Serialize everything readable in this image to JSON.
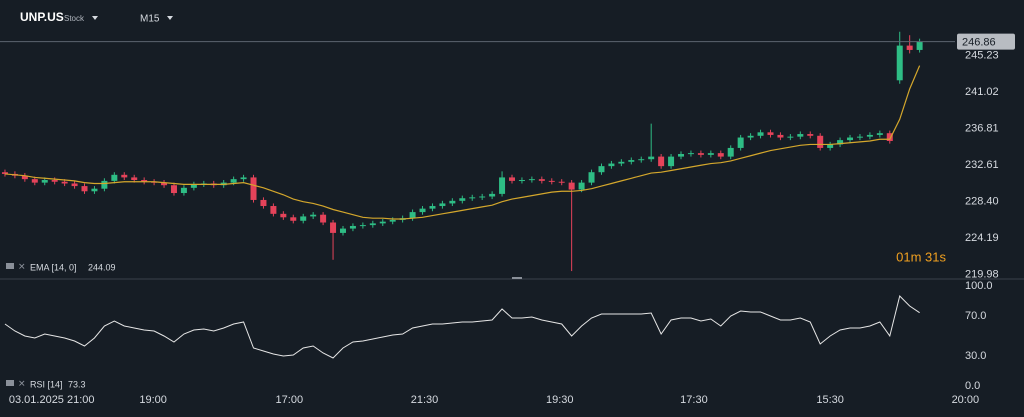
{
  "toolbar": {
    "symbol": "UNP.US",
    "kind": "Stock",
    "timeframe": "M15",
    "timer": "01m 31s"
  },
  "chart_data": [
    {
      "type": "candlestick",
      "up_color": "#2ebd85",
      "down_color": "#e5435a",
      "ylim": [
        219.6,
        248.2
      ],
      "yticks": [
        245.23,
        241.02,
        236.81,
        232.61,
        {
          "value": 228.4,
          "label": "228.40"
        },
        224.19,
        219.98
      ],
      "open": [
        231.8,
        231.6,
        231.4,
        231.0,
        230.6,
        230.9,
        230.7,
        230.5,
        230.2,
        229.6,
        229.9,
        230.8,
        231.5,
        231.2,
        230.9,
        230.7,
        230.6,
        230.3,
        229.4,
        230.0,
        230.4,
        230.5,
        230.3,
        230.6,
        231.0,
        231.2,
        228.6,
        227.9,
        227.0,
        226.6,
        226.2,
        226.7,
        226.9,
        226.0,
        224.8,
        225.3,
        225.6,
        225.7,
        225.9,
        226.1,
        226.3,
        226.5,
        227.2,
        227.6,
        227.9,
        228.2,
        228.5,
        228.8,
        228.9,
        229.0,
        229.3,
        231.2,
        230.8,
        230.9,
        231.0,
        230.8,
        230.7,
        230.6,
        229.8,
        230.6,
        231.8,
        232.5,
        232.8,
        233.0,
        233.2,
        233.3,
        233.6,
        232.5,
        233.6,
        233.9,
        234.0,
        233.8,
        234.0,
        233.6,
        234.6,
        235.8,
        236.0,
        236.4,
        236.1,
        235.8,
        235.9,
        236.2,
        236.0,
        234.6,
        235.0,
        235.5,
        235.8,
        235.9,
        236.1,
        236.3,
        242.4,
        246.4,
        245.9
      ],
      "high": [
        232.1,
        231.9,
        231.7,
        231.3,
        231.2,
        231.2,
        231.0,
        230.8,
        230.5,
        230.2,
        231.1,
        231.8,
        231.8,
        231.5,
        231.2,
        231.0,
        230.9,
        230.6,
        230.3,
        230.7,
        230.8,
        230.8,
        230.9,
        231.3,
        231.5,
        231.5,
        228.9,
        228.2,
        227.3,
        226.9,
        227.0,
        227.2,
        227.2,
        226.3,
        225.6,
        225.9,
        226.0,
        226.2,
        226.4,
        226.6,
        226.8,
        227.5,
        227.9,
        228.2,
        228.5,
        228.8,
        229.1,
        229.2,
        229.3,
        229.6,
        231.9,
        231.5,
        231.2,
        231.3,
        231.3,
        231.1,
        231.0,
        230.9,
        230.9,
        232.1,
        232.8,
        233.1,
        233.3,
        233.5,
        233.6,
        237.4,
        233.9,
        233.9,
        234.2,
        234.3,
        234.3,
        234.3,
        234.3,
        234.9,
        236.1,
        236.3,
        236.7,
        236.7,
        236.4,
        236.2,
        236.5,
        236.5,
        236.3,
        235.3,
        235.8,
        236.1,
        236.2,
        236.4,
        236.6,
        236.6,
        248.0,
        247.6,
        247.2
      ],
      "low": [
        231.3,
        231.1,
        230.7,
        230.3,
        230.3,
        230.4,
        230.2,
        229.9,
        229.3,
        229.3,
        229.6,
        230.5,
        230.9,
        230.6,
        230.4,
        230.3,
        230.0,
        229.1,
        229.1,
        229.7,
        230.1,
        230.0,
        230.0,
        230.3,
        230.7,
        228.3,
        227.6,
        226.7,
        226.3,
        225.9,
        225.9,
        226.4,
        225.7,
        221.7,
        224.5,
        225.0,
        225.3,
        225.4,
        225.6,
        225.8,
        226.0,
        226.2,
        226.9,
        227.3,
        227.6,
        227.9,
        228.2,
        228.5,
        228.6,
        228.7,
        229.0,
        230.5,
        230.5,
        230.6,
        230.5,
        230.4,
        230.3,
        220.4,
        229.5,
        230.3,
        231.5,
        232.2,
        232.5,
        232.7,
        232.9,
        233.0,
        232.2,
        232.2,
        233.3,
        233.6,
        233.5,
        233.5,
        233.3,
        233.3,
        234.3,
        235.5,
        235.7,
        235.8,
        235.5,
        235.5,
        235.6,
        235.7,
        234.3,
        234.3,
        234.7,
        235.2,
        235.5,
        235.6,
        235.8,
        235.1,
        242.0,
        245.5,
        245.6
      ],
      "close": [
        231.6,
        231.4,
        231.0,
        230.6,
        230.9,
        230.7,
        230.5,
        230.2,
        229.6,
        229.9,
        230.8,
        231.5,
        231.2,
        230.9,
        230.7,
        230.6,
        230.3,
        229.4,
        230.0,
        230.4,
        230.5,
        230.3,
        230.6,
        231.0,
        231.2,
        228.6,
        227.9,
        227.0,
        226.6,
        226.2,
        226.7,
        226.9,
        226.0,
        224.8,
        225.3,
        225.6,
        225.7,
        225.9,
        226.1,
        226.3,
        226.5,
        227.2,
        227.6,
        227.9,
        228.2,
        228.5,
        228.8,
        228.9,
        229.0,
        229.3,
        231.2,
        230.8,
        230.9,
        231.0,
        230.8,
        230.7,
        230.6,
        229.8,
        230.6,
        231.8,
        232.5,
        232.8,
        233.0,
        233.2,
        233.3,
        233.6,
        232.5,
        233.6,
        233.9,
        234.0,
        233.8,
        234.0,
        233.6,
        234.6,
        235.8,
        236.0,
        236.4,
        236.1,
        235.8,
        235.9,
        236.2,
        236.0,
        234.6,
        235.0,
        235.5,
        235.8,
        235.9,
        236.1,
        236.3,
        235.4,
        246.4,
        245.9,
        246.86
      ],
      "ema": {
        "name": "EMA [14, 0]",
        "color": "#d4a72c",
        "values": [
          231.6,
          231.5,
          231.4,
          231.2,
          231.1,
          231.0,
          230.9,
          230.8,
          230.6,
          230.5,
          230.5,
          230.6,
          230.7,
          230.7,
          230.7,
          230.7,
          230.6,
          230.5,
          230.4,
          230.4,
          230.4,
          230.4,
          230.4,
          230.5,
          230.6,
          230.3,
          230.0,
          229.6,
          229.2,
          228.7,
          228.4,
          228.2,
          227.9,
          227.5,
          227.2,
          226.9,
          226.6,
          226.5,
          226.5,
          226.4,
          226.4,
          226.5,
          226.6,
          226.8,
          227.0,
          227.2,
          227.4,
          227.6,
          227.8,
          228.0,
          228.4,
          228.7,
          228.9,
          229.1,
          229.3,
          229.5,
          229.6,
          229.6,
          229.7,
          229.9,
          230.2,
          230.5,
          230.8,
          231.1,
          231.4,
          231.7,
          231.8,
          232.0,
          232.2,
          232.4,
          232.6,
          232.8,
          232.9,
          233.1,
          233.4,
          233.7,
          234.0,
          234.3,
          234.5,
          234.7,
          234.9,
          235.0,
          235.0,
          235.0,
          235.1,
          235.2,
          235.3,
          235.4,
          235.6,
          235.6,
          237.9,
          241.4,
          244.09
        ]
      }
    },
    {
      "type": "line",
      "name": "RSI [14]",
      "color": "#e6e6e6",
      "ylim": [
        0,
        100
      ],
      "yticks": [
        {
          "value": 100,
          "label": "100.0"
        },
        {
          "value": 70,
          "label": "70.0"
        },
        {
          "value": 30,
          "label": "30.0"
        },
        {
          "value": 0,
          "label": "0.0"
        }
      ],
      "xlim": [
        0,
        103
      ],
      "xticks": [
        {
          "value": 5.2,
          "label": "03.01.2025 21:00"
        },
        {
          "value": 15.4,
          "label": "19:00"
        },
        {
          "value": 29.1,
          "label": "17:00"
        },
        {
          "value": 42.7,
          "label": "21:30"
        },
        {
          "value": 56.3,
          "label": "19:30"
        },
        {
          "value": 69.8,
          "label": "17:30"
        },
        {
          "value": 83.5,
          "label": "15:30"
        },
        {
          "value": 97.1,
          "label": "20:00"
        }
      ],
      "values": [
        62,
        55,
        50,
        48,
        52,
        50,
        48,
        45,
        40,
        48,
        60,
        65,
        60,
        58,
        56,
        55,
        50,
        44,
        52,
        56,
        57,
        55,
        58,
        62,
        64,
        38,
        35,
        32,
        30,
        31,
        38,
        40,
        33,
        28,
        38,
        44,
        45,
        47,
        49,
        51,
        52,
        58,
        60,
        62,
        62,
        63,
        64,
        64,
        65,
        66,
        77,
        68,
        68,
        69,
        66,
        64,
        62,
        50,
        60,
        68,
        72,
        72,
        72,
        72,
        72,
        73,
        52,
        66,
        68,
        68,
        65,
        67,
        60,
        70,
        75,
        74,
        74,
        70,
        66,
        66,
        68,
        64,
        42,
        50,
        56,
        58,
        58,
        60,
        64,
        50,
        90,
        80,
        73.3
      ]
    }
  ]
}
